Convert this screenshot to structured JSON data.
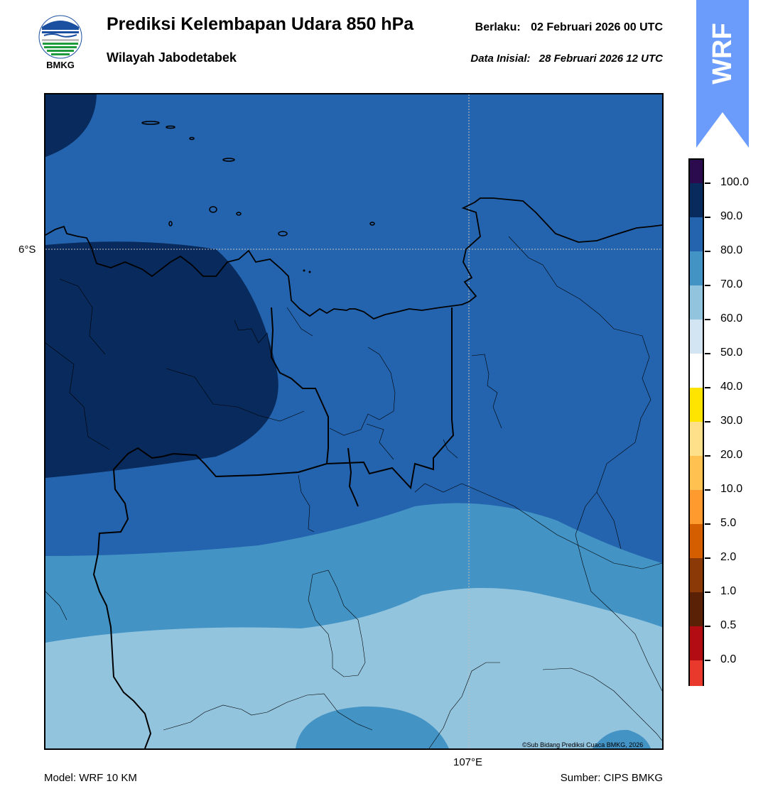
{
  "header": {
    "title": "Prediksi Kelembapan Udara 850 hPa",
    "subtitle": "Wilayah Jabodetabek",
    "valid_label": "Berlaku:",
    "valid_value": "02 Februari 2026 00 UTC",
    "init_label": "Data Inisial:",
    "init_value": "28 Februari 2026 12 UTC"
  },
  "logo": {
    "icon": "bmkg-logo-icon",
    "text": "BMKG"
  },
  "banner": {
    "text": "WRF",
    "color": "#6b9cfc"
  },
  "map": {
    "lat_label": "6°S",
    "lon_label": "107°E",
    "credit": "©Sub Bidang Prediksi Cuaca BMKG, 2026"
  },
  "colorbar": {
    "labels": [
      "100.0",
      "90.0",
      "80.0",
      "70.0",
      "60.0",
      "50.0",
      "40.0",
      "30.0",
      "20.0",
      "10.0",
      "5.0",
      "2.0",
      "1.0",
      "0.5",
      "0.0"
    ],
    "colors": [
      "#2b0a4d",
      "#082a5c",
      "#2464ae",
      "#4393c5",
      "#93c4de",
      "#d3e5f2",
      "#ffffff",
      "#ffe400",
      "#ffe08a",
      "#ffc250",
      "#ff9a2e",
      "#d55e00",
      "#8b3a07",
      "#5a2106",
      "#b30c12",
      "#e8392c"
    ],
    "levels": {
      "dark_navy": "90-100",
      "medium_blue": "80-90",
      "steel_blue": "70-80",
      "light_blue": "60-70"
    }
  },
  "footer": {
    "model": "Model: WRF 10 KM",
    "source": "Sumber: CIPS BMKG"
  }
}
